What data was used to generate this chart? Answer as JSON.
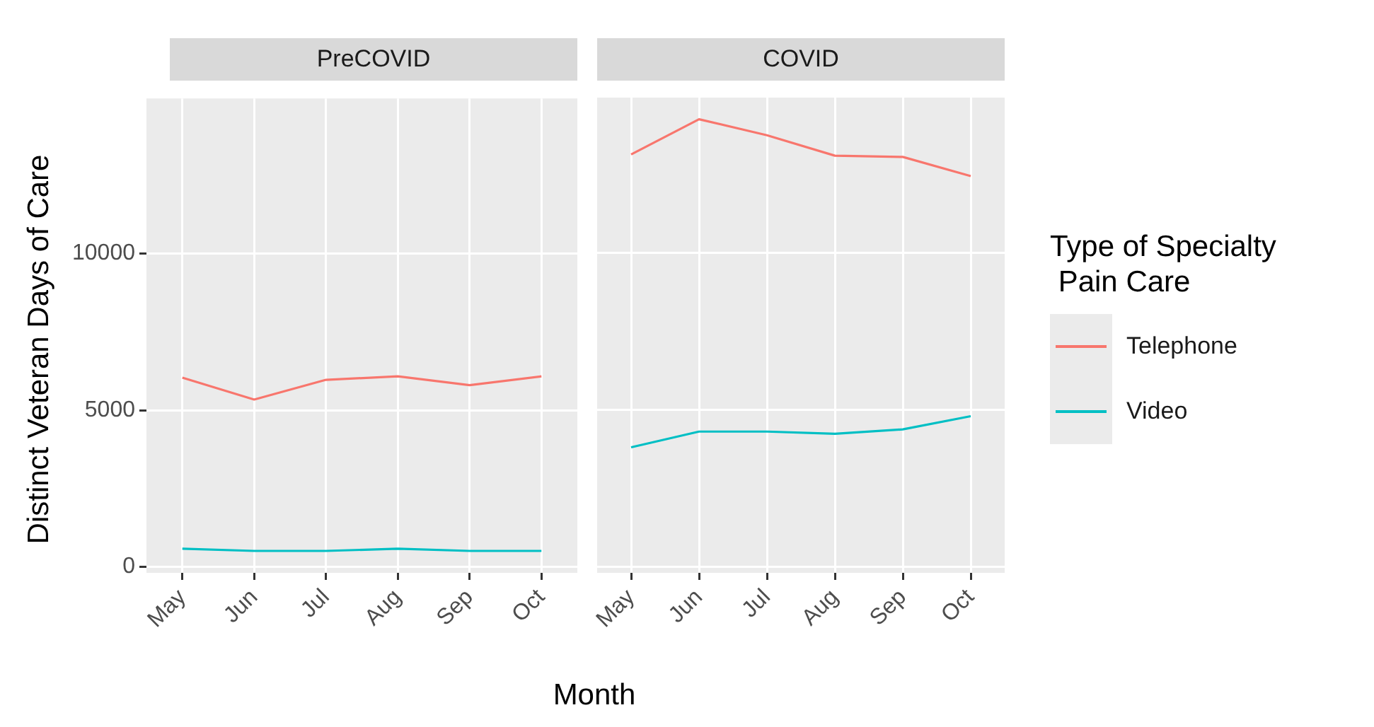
{
  "chart_data": [
    {
      "type": "line",
      "title": "PreCOVID",
      "ylabel": "Distinct Veteran Days of Care",
      "xlabel": "Month",
      "categories": [
        "May",
        "Jun",
        "Jul",
        "Aug",
        "Sep",
        "Oct"
      ],
      "series": [
        {
          "name": "Telephone",
          "color": "#f8766d",
          "values": [
            6040,
            5340,
            5970,
            6080,
            5800,
            6080
          ]
        },
        {
          "name": "Video",
          "color": "#00bfc4",
          "values": [
            580,
            510,
            510,
            580,
            510,
            510
          ]
        }
      ],
      "ylim": [
        -190,
        14950
      ],
      "yticks": [
        0,
        5000,
        10000
      ],
      "grid": true,
      "legend": "right",
      "legend_title": "Type of Specialty\n Pain Care"
    },
    {
      "type": "line",
      "title": "COVID",
      "categories": [
        "May",
        "Jun",
        "Jul",
        "Aug",
        "Sep",
        "Oct"
      ],
      "series": [
        {
          "color": "#f8766d",
          "values": [
            13140,
            14260,
            13750,
            13100,
            13060,
            12450
          ]
        },
        {
          "color": "#00bfc4",
          "values": [
            3810,
            4310,
            4310,
            4240,
            4380,
            4800
          ]
        }
      ],
      "ylim": [
        -190,
        14950
      ],
      "yticks": [
        0,
        5000,
        10000
      ],
      "grid": true,
      "tick_labels": "x"
    }
  ]
}
